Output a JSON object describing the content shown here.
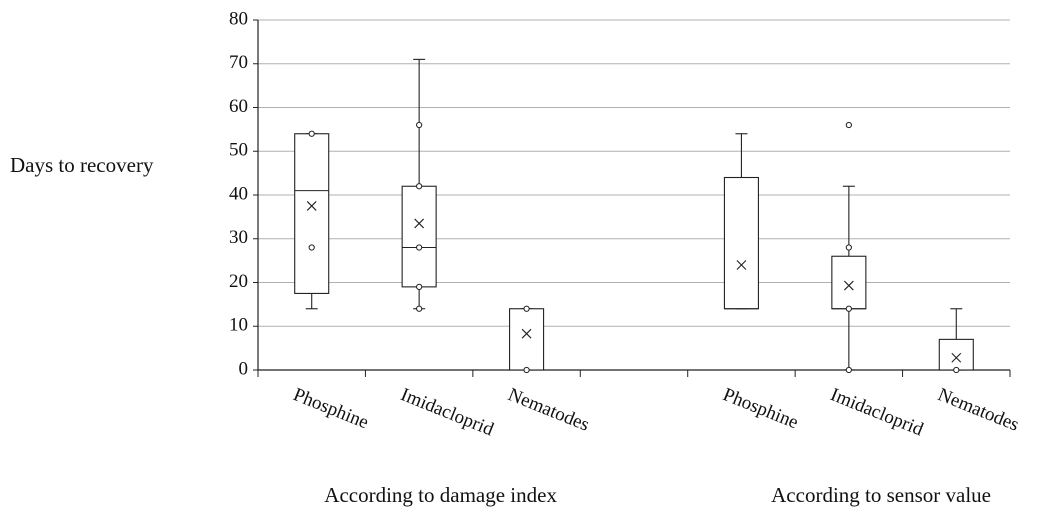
{
  "chart_data": {
    "type": "box",
    "y_label": "Days to recovery",
    "categories": [
      "Phosphine",
      "Imidacloprid",
      "Nematodes",
      null,
      "Phosphine",
      "Imidacloprid",
      "Nematodes"
    ],
    "groups": [
      "According to damage index",
      "According to sensor value"
    ],
    "min": [
      14,
      14,
      0,
      null,
      14,
      0,
      0
    ],
    "q1": [
      17.5,
      19,
      0,
      null,
      14,
      14,
      0
    ],
    "median": [
      41,
      28,
      0,
      null,
      14,
      14,
      0
    ],
    "q3": [
      54,
      42,
      14,
      null,
      44,
      26,
      7
    ],
    "max": [
      54,
      71,
      14,
      null,
      54,
      42,
      14
    ],
    "mean": [
      37.5,
      33.5,
      8.3,
      null,
      24,
      19.3,
      2.8
    ],
    "points": [
      [
        54,
        28
      ],
      [
        56,
        42,
        28,
        19,
        14
      ],
      [
        14,
        0
      ],
      null,
      null,
      [
        56,
        28,
        14,
        0
      ],
      [
        0
      ]
    ],
    "color": "#ffffff",
    "ylim": [
      0,
      80
    ],
    "yticks": [
      0,
      10,
      20,
      30,
      40,
      50,
      60,
      70,
      80
    ],
    "grid": true
  }
}
